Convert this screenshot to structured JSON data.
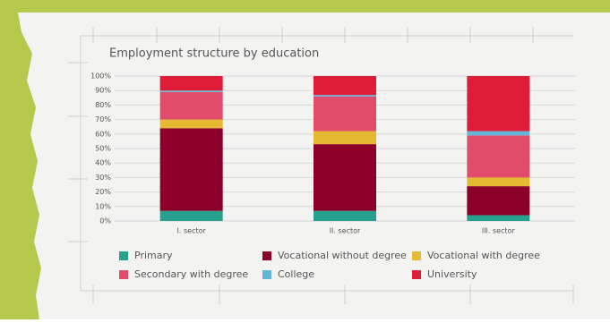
{
  "chart_data": {
    "type": "stacked-bar",
    "title": "Employment structure by education",
    "categories": [
      "I. sector",
      "II. sector",
      "III. sector"
    ],
    "series": [
      {
        "name": "Primary",
        "color": "#27a08e",
        "values": [
          7,
          7,
          4
        ]
      },
      {
        "name": "Vocational without degree",
        "color": "#8a0028",
        "values": [
          57,
          46,
          20
        ]
      },
      {
        "name": "Vocational with degree",
        "color": "#e6b933",
        "values": [
          6,
          9,
          6
        ]
      },
      {
        "name": "Secondary with degree",
        "color": "#e24c6b",
        "values": [
          19,
          24,
          29
        ]
      },
      {
        "name": "College",
        "color": "#63b6d8",
        "values": [
          1,
          1,
          3
        ]
      },
      {
        "name": "University",
        "color": "#e01d38",
        "values": [
          10,
          13,
          38
        ]
      }
    ],
    "ylim": [
      0,
      100
    ],
    "yticks": [
      {
        "value": 0,
        "label": "0%"
      },
      {
        "value": 10,
        "label": "10%"
      },
      {
        "value": 20,
        "label": "20%"
      },
      {
        "value": 30,
        "label": "30%"
      },
      {
        "value": 40,
        "label": "40%"
      },
      {
        "value": 50,
        "label": "50%"
      },
      {
        "value": 60,
        "label": "60%"
      },
      {
        "value": 70,
        "label": "70%"
      },
      {
        "value": 80,
        "label": "80%"
      },
      {
        "value": 90,
        "label": "90%"
      },
      {
        "value": 100,
        "label": "100%"
      }
    ],
    "grid": true
  }
}
